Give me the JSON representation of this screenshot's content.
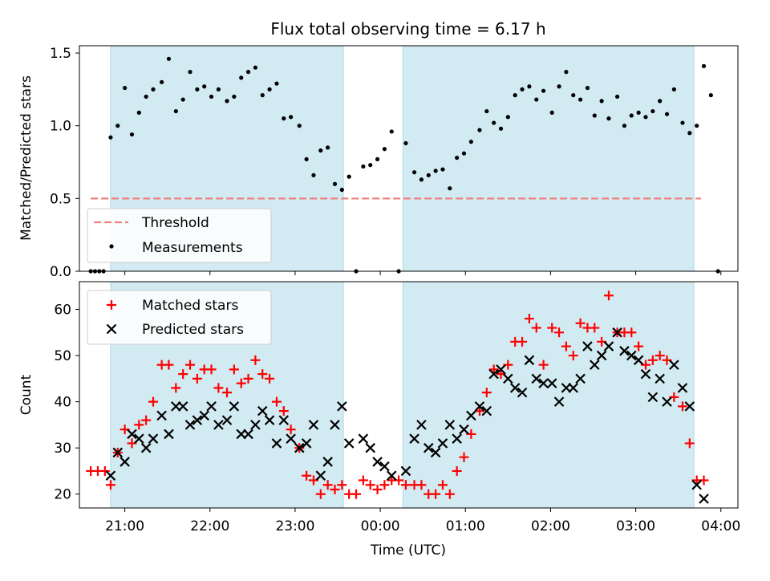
{
  "title": "Flux total observing time = 6.17 h",
  "colors": {
    "shade": "#add8e6",
    "threshold": "#f08080",
    "matched": "#ff0000",
    "predicted": "#000000",
    "measurement": "#000000"
  },
  "chart_data": [
    {
      "type": "scatter",
      "ylabel": "Matched/Predicted stars",
      "xlabel": "",
      "ylim": [
        0,
        1.55
      ],
      "yticks": [
        0.0,
        0.5,
        1.0,
        1.5
      ],
      "xlim": [
        "20:28",
        "04:12"
      ],
      "legend_position": "lower-left",
      "shaded_intervals": [
        [
          "20:50",
          "23:34"
        ],
        [
          "00:16",
          "03:41"
        ]
      ],
      "threshold": {
        "name": "Threshold",
        "value": 0.5,
        "x_range": [
          "20:36",
          "03:46"
        ]
      },
      "series": [
        {
          "name": "Measurements",
          "points": [
            [
              "20:36",
              0.0
            ],
            [
              "20:39",
              0.0
            ],
            [
              "20:42",
              0.0
            ],
            [
              "20:45",
              0.0
            ],
            [
              "20:50",
              0.92
            ],
            [
              "20:55",
              1.0
            ],
            [
              "21:00",
              1.26
            ],
            [
              "21:05",
              0.94
            ],
            [
              "21:10",
              1.09
            ],
            [
              "21:15",
              1.2
            ],
            [
              "21:20",
              1.25
            ],
            [
              "21:26",
              1.3
            ],
            [
              "21:31",
              1.46
            ],
            [
              "21:36",
              1.1
            ],
            [
              "21:41",
              1.18
            ],
            [
              "21:46",
              1.37
            ],
            [
              "21:51",
              1.25
            ],
            [
              "21:56",
              1.27
            ],
            [
              "22:01",
              1.2
            ],
            [
              "22:06",
              1.25
            ],
            [
              "22:12",
              1.17
            ],
            [
              "22:17",
              1.2
            ],
            [
              "22:22",
              1.33
            ],
            [
              "22:27",
              1.37
            ],
            [
              "22:32",
              1.4
            ],
            [
              "22:37",
              1.21
            ],
            [
              "22:42",
              1.25
            ],
            [
              "22:47",
              1.29
            ],
            [
              "22:52",
              1.05
            ],
            [
              "22:57",
              1.06
            ],
            [
              "23:03",
              1.0
            ],
            [
              "23:08",
              0.77
            ],
            [
              "23:13",
              0.66
            ],
            [
              "23:18",
              0.83
            ],
            [
              "23:23",
              0.85
            ],
            [
              "23:28",
              0.6
            ],
            [
              "23:33",
              0.56
            ],
            [
              "23:38",
              0.65
            ],
            [
              "23:43",
              0.0
            ],
            [
              "23:48",
              0.72
            ],
            [
              "23:53",
              0.73
            ],
            [
              "23:58",
              0.77
            ],
            [
              "00:03",
              0.84
            ],
            [
              "00:08",
              0.96
            ],
            [
              "00:13",
              0.0
            ],
            [
              "00:18",
              0.88
            ],
            [
              "00:24",
              0.68
            ],
            [
              "00:29",
              0.63
            ],
            [
              "00:34",
              0.66
            ],
            [
              "00:39",
              0.69
            ],
            [
              "00:44",
              0.7
            ],
            [
              "00:49",
              0.57
            ],
            [
              "00:54",
              0.78
            ],
            [
              "00:59",
              0.81
            ],
            [
              "01:04",
              0.89
            ],
            [
              "01:10",
              0.97
            ],
            [
              "01:15",
              1.1
            ],
            [
              "01:20",
              1.02
            ],
            [
              "01:25",
              0.98
            ],
            [
              "01:30",
              1.06
            ],
            [
              "01:35",
              1.21
            ],
            [
              "01:40",
              1.25
            ],
            [
              "01:45",
              1.27
            ],
            [
              "01:50",
              1.18
            ],
            [
              "01:55",
              1.24
            ],
            [
              "02:01",
              1.09
            ],
            [
              "02:06",
              1.27
            ],
            [
              "02:11",
              1.37
            ],
            [
              "02:16",
              1.21
            ],
            [
              "02:21",
              1.18
            ],
            [
              "02:26",
              1.26
            ],
            [
              "02:31",
              1.07
            ],
            [
              "02:36",
              1.17
            ],
            [
              "02:41",
              1.05
            ],
            [
              "02:47",
              1.2
            ],
            [
              "02:52",
              1.0
            ],
            [
              "02:57",
              1.07
            ],
            [
              "03:02",
              1.09
            ],
            [
              "03:07",
              1.06
            ],
            [
              "03:12",
              1.1
            ],
            [
              "03:17",
              1.17
            ],
            [
              "03:22",
              1.08
            ],
            [
              "03:27",
              1.25
            ],
            [
              "03:33",
              1.02
            ],
            [
              "03:38",
              0.95
            ],
            [
              "03:43",
              1.0
            ],
            [
              "03:48",
              1.41
            ],
            [
              "03:53",
              1.21
            ],
            [
              "03:58",
              0.0
            ]
          ]
        }
      ]
    },
    {
      "type": "scatter",
      "ylabel": "Count",
      "xlabel": "Time (UTC)",
      "ylim": [
        17,
        66
      ],
      "yticks": [
        20,
        30,
        40,
        50,
        60
      ],
      "xlim": [
        "20:28",
        "04:12"
      ],
      "xticks": [
        "21:00",
        "22:00",
        "23:00",
        "00:00",
        "01:00",
        "02:00",
        "03:00",
        "04:00"
      ],
      "legend_position": "top-left",
      "shaded_intervals": [
        [
          "20:50",
          "23:34"
        ],
        [
          "00:16",
          "03:41"
        ]
      ],
      "series": [
        {
          "name": "Matched stars",
          "marker": "plus",
          "points": [
            [
              "20:36",
              25
            ],
            [
              "20:41",
              25
            ],
            [
              "20:46",
              25
            ],
            [
              "20:50",
              22
            ],
            [
              "20:55",
              29
            ],
            [
              "21:00",
              34
            ],
            [
              "21:05",
              31
            ],
            [
              "21:10",
              35
            ],
            [
              "21:15",
              36
            ],
            [
              "21:20",
              40
            ],
            [
              "21:26",
              48
            ],
            [
              "21:31",
              48
            ],
            [
              "21:36",
              43
            ],
            [
              "21:41",
              46
            ],
            [
              "21:46",
              48
            ],
            [
              "21:51",
              45
            ],
            [
              "21:56",
              47
            ],
            [
              "22:01",
              47
            ],
            [
              "22:06",
              43
            ],
            [
              "22:12",
              42
            ],
            [
              "22:17",
              47
            ],
            [
              "22:22",
              44
            ],
            [
              "22:27",
              45
            ],
            [
              "22:32",
              49
            ],
            [
              "22:37",
              46
            ],
            [
              "22:42",
              45
            ],
            [
              "22:47",
              40
            ],
            [
              "22:52",
              38
            ],
            [
              "22:57",
              34
            ],
            [
              "23:03",
              30
            ],
            [
              "23:08",
              24
            ],
            [
              "23:13",
              23
            ],
            [
              "23:18",
              20
            ],
            [
              "23:23",
              22
            ],
            [
              "23:28",
              21
            ],
            [
              "23:33",
              22
            ],
            [
              "23:38",
              20
            ],
            [
              "23:43",
              20
            ],
            [
              "23:48",
              23
            ],
            [
              "23:53",
              22
            ],
            [
              "23:58",
              21
            ],
            [
              "00:03",
              22
            ],
            [
              "00:08",
              23
            ],
            [
              "00:13",
              23
            ],
            [
              "00:18",
              22
            ],
            [
              "00:24",
              22
            ],
            [
              "00:29",
              22
            ],
            [
              "00:34",
              20
            ],
            [
              "00:39",
              20
            ],
            [
              "00:44",
              22
            ],
            [
              "00:49",
              20
            ],
            [
              "00:54",
              25
            ],
            [
              "00:59",
              28
            ],
            [
              "01:04",
              33
            ],
            [
              "01:10",
              38
            ],
            [
              "01:15",
              42
            ],
            [
              "01:20",
              47
            ],
            [
              "01:25",
              46
            ],
            [
              "01:30",
              48
            ],
            [
              "01:35",
              53
            ],
            [
              "01:40",
              53
            ],
            [
              "01:45",
              58
            ],
            [
              "01:50",
              56
            ],
            [
              "01:55",
              48
            ],
            [
              "02:01",
              56
            ],
            [
              "02:06",
              55
            ],
            [
              "02:11",
              52
            ],
            [
              "02:16",
              50
            ],
            [
              "02:21",
              57
            ],
            [
              "02:26",
              56
            ],
            [
              "02:31",
              56
            ],
            [
              "02:36",
              53
            ],
            [
              "02:41",
              63
            ],
            [
              "02:47",
              55
            ],
            [
              "02:52",
              55
            ],
            [
              "02:57",
              55
            ],
            [
              "03:02",
              52
            ],
            [
              "03:07",
              48
            ],
            [
              "03:12",
              49
            ],
            [
              "03:17",
              50
            ],
            [
              "03:22",
              49
            ],
            [
              "03:27",
              41
            ],
            [
              "03:33",
              39
            ],
            [
              "03:38",
              31
            ],
            [
              "03:43",
              23
            ],
            [
              "03:48",
              23
            ]
          ]
        },
        {
          "name": "Predicted stars",
          "marker": "x",
          "points": [
            [
              "20:50",
              24
            ],
            [
              "20:55",
              29
            ],
            [
              "21:00",
              27
            ],
            [
              "21:05",
              33
            ],
            [
              "21:10",
              32
            ],
            [
              "21:15",
              30
            ],
            [
              "21:20",
              32
            ],
            [
              "21:26",
              37
            ],
            [
              "21:31",
              33
            ],
            [
              "21:36",
              39
            ],
            [
              "21:41",
              39
            ],
            [
              "21:46",
              35
            ],
            [
              "21:51",
              36
            ],
            [
              "21:56",
              37
            ],
            [
              "22:01",
              39
            ],
            [
              "22:06",
              35
            ],
            [
              "22:12",
              36
            ],
            [
              "22:17",
              39
            ],
            [
              "22:22",
              33
            ],
            [
              "22:27",
              33
            ],
            [
              "22:32",
              35
            ],
            [
              "22:37",
              38
            ],
            [
              "22:42",
              36
            ],
            [
              "22:47",
              31
            ],
            [
              "22:52",
              36
            ],
            [
              "22:57",
              32
            ],
            [
              "23:03",
              30
            ],
            [
              "23:08",
              31
            ],
            [
              "23:13",
              35
            ],
            [
              "23:18",
              24
            ],
            [
              "23:23",
              27
            ],
            [
              "23:28",
              35
            ],
            [
              "23:33",
              39
            ],
            [
              "23:38",
              31
            ],
            [
              "23:48",
              32
            ],
            [
              "23:53",
              30
            ],
            [
              "23:58",
              27
            ],
            [
              "00:03",
              26
            ],
            [
              "00:08",
              24
            ],
            [
              "00:18",
              25
            ],
            [
              "00:24",
              32
            ],
            [
              "00:29",
              35
            ],
            [
              "00:34",
              30
            ],
            [
              "00:39",
              29
            ],
            [
              "00:44",
              31
            ],
            [
              "00:49",
              35
            ],
            [
              "00:54",
              32
            ],
            [
              "00:59",
              34
            ],
            [
              "01:04",
              37
            ],
            [
              "01:10",
              39
            ],
            [
              "01:15",
              38
            ],
            [
              "01:20",
              46
            ],
            [
              "01:25",
              47
            ],
            [
              "01:30",
              45
            ],
            [
              "01:35",
              43
            ],
            [
              "01:40",
              42
            ],
            [
              "01:45",
              49
            ],
            [
              "01:50",
              45
            ],
            [
              "01:55",
              44
            ],
            [
              "02:01",
              44
            ],
            [
              "02:06",
              40
            ],
            [
              "02:11",
              43
            ],
            [
              "02:16",
              43
            ],
            [
              "02:21",
              45
            ],
            [
              "02:26",
              52
            ],
            [
              "02:31",
              48
            ],
            [
              "02:36",
              50
            ],
            [
              "02:41",
              52
            ],
            [
              "02:47",
              55
            ],
            [
              "02:52",
              51
            ],
            [
              "02:57",
              50
            ],
            [
              "03:02",
              49
            ],
            [
              "03:07",
              46
            ],
            [
              "03:12",
              41
            ],
            [
              "03:17",
              45
            ],
            [
              "03:22",
              40
            ],
            [
              "03:27",
              48
            ],
            [
              "03:33",
              43
            ],
            [
              "03:38",
              39
            ],
            [
              "03:43",
              22
            ],
            [
              "03:48",
              19
            ]
          ]
        }
      ]
    }
  ]
}
